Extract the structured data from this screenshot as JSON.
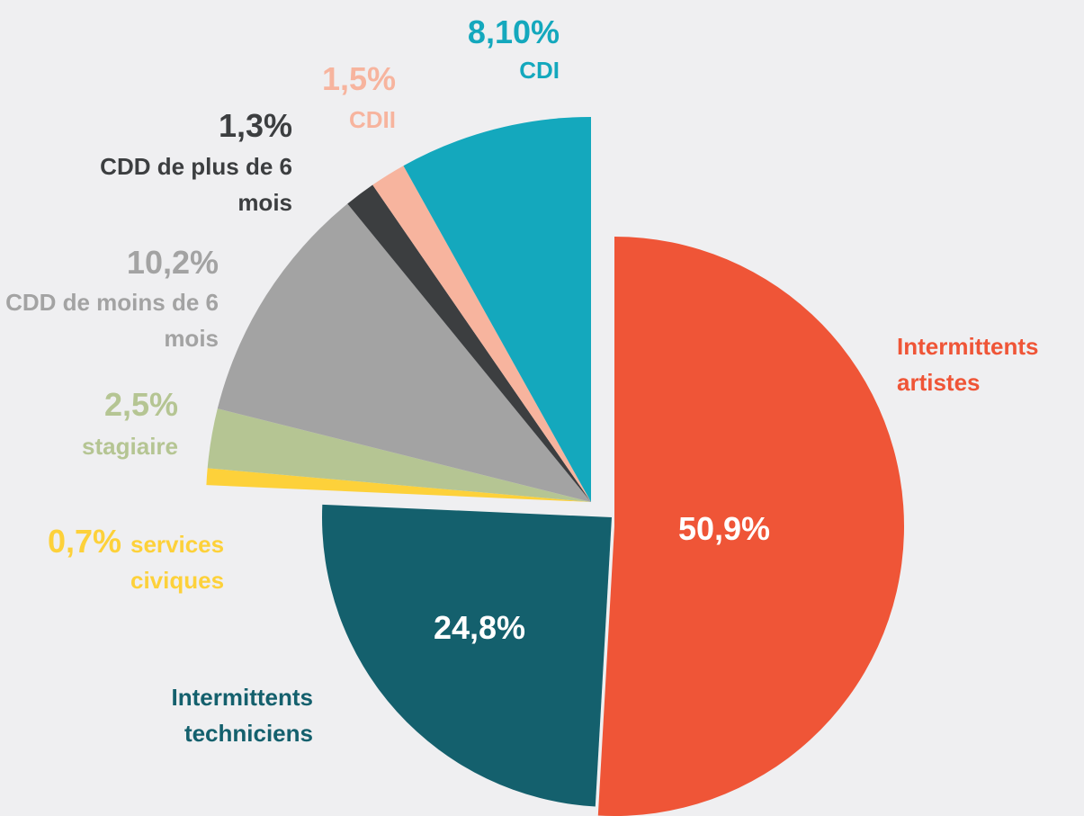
{
  "chart_data": {
    "type": "pie",
    "categories": [
      "Intermittents artistes",
      "Intermittents techniciens",
      "services civiques",
      "stagiaire",
      "CDD de moins de 6 mois",
      "CDD de plus de 6 mois",
      "CDII",
      "CDI"
    ],
    "values": [
      50.9,
      24.8,
      0.7,
      2.5,
      10.2,
      1.3,
      1.5,
      8.1
    ],
    "value_labels": [
      "50,9%",
      "24,8%",
      "0,7%",
      "2,5%",
      "10,2%",
      "1,3%",
      "1,5%",
      "8,10%"
    ],
    "colors": [
      "#ef5537",
      "#14606d",
      "#fdd13a",
      "#b5c593",
      "#a3a3a3",
      "#3c3e40",
      "#f7b49e",
      "#14a8bd"
    ]
  }
}
